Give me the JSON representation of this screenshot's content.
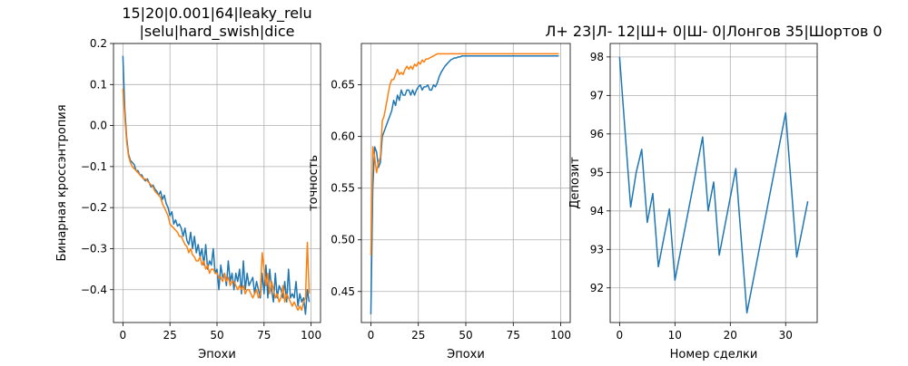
{
  "colors": {
    "series1": "#1f77b4",
    "series2": "#ff7f0e",
    "grid": "#b0b0b0"
  },
  "chart_data": [
    {
      "type": "line",
      "title_lines": [
        "15|20|0.001|64|leaky_relu",
        "|selu|hard_swish|dice"
      ],
      "xlabel": "Эпохи",
      "ylabel": "Бинарная кроссэнтропия",
      "xlim": [
        -5,
        105
      ],
      "ylim": [
        -0.48,
        0.2
      ],
      "xticks": [
        0,
        25,
        50,
        75,
        100
      ],
      "yticks": [
        -0.4,
        -0.3,
        -0.2,
        -0.1,
        0.0,
        0.1,
        0.2
      ],
      "xtick_labels": [
        "0",
        "25",
        "50",
        "75",
        "100"
      ],
      "ytick_labels": [
        "−0.4",
        "−0.3",
        "−0.2",
        "−0.1",
        "0.0",
        "0.1",
        "0.2"
      ],
      "grid": true,
      "series": [
        {
          "name": "series-1",
          "color": "#1f77b4",
          "x": [
            0,
            1,
            2,
            3,
            4,
            5,
            6,
            7,
            8,
            9,
            10,
            11,
            12,
            13,
            14,
            15,
            16,
            17,
            18,
            19,
            20,
            21,
            22,
            23,
            24,
            25,
            26,
            27,
            28,
            29,
            30,
            31,
            32,
            33,
            34,
            35,
            36,
            37,
            38,
            39,
            40,
            41,
            42,
            43,
            44,
            45,
            46,
            47,
            48,
            49,
            50,
            51,
            52,
            53,
            54,
            55,
            56,
            57,
            58,
            59,
            60,
            61,
            62,
            63,
            64,
            65,
            66,
            67,
            68,
            69,
            70,
            71,
            72,
            73,
            74,
            75,
            76,
            77,
            78,
            79,
            80,
            81,
            82,
            83,
            84,
            85,
            86,
            87,
            88,
            89,
            90,
            91,
            92,
            93,
            94,
            95,
            96,
            97,
            98,
            99
          ],
          "values": [
            0.17,
            0.04,
            -0.03,
            -0.07,
            -0.085,
            -0.09,
            -0.095,
            -0.11,
            -0.11,
            -0.12,
            -0.12,
            -0.13,
            -0.135,
            -0.13,
            -0.14,
            -0.15,
            -0.145,
            -0.155,
            -0.16,
            -0.17,
            -0.16,
            -0.18,
            -0.17,
            -0.19,
            -0.2,
            -0.22,
            -0.21,
            -0.24,
            -0.23,
            -0.245,
            -0.24,
            -0.25,
            -0.27,
            -0.25,
            -0.28,
            -0.29,
            -0.26,
            -0.3,
            -0.27,
            -0.31,
            -0.29,
            -0.32,
            -0.3,
            -0.34,
            -0.29,
            -0.35,
            -0.33,
            -0.34,
            -0.3,
            -0.36,
            -0.35,
            -0.4,
            -0.34,
            -0.37,
            -0.36,
            -0.39,
            -0.33,
            -0.38,
            -0.36,
            -0.4,
            -0.36,
            -0.38,
            -0.35,
            -0.41,
            -0.33,
            -0.4,
            -0.36,
            -0.39,
            -0.38,
            -0.37,
            -0.41,
            -0.38,
            -0.4,
            -0.42,
            -0.36,
            -0.41,
            -0.34,
            -0.42,
            -0.35,
            -0.4,
            -0.43,
            -0.36,
            -0.42,
            -0.39,
            -0.4,
            -0.42,
            -0.38,
            -0.43,
            -0.35,
            -0.42,
            -0.41,
            -0.42,
            -0.38,
            -0.44,
            -0.41,
            -0.43,
            -0.42,
            -0.46,
            -0.4,
            -0.43
          ]
        },
        {
          "name": "series-2",
          "color": "#ff7f0e",
          "x": [
            0,
            1,
            2,
            3,
            4,
            5,
            6,
            7,
            8,
            9,
            10,
            11,
            12,
            13,
            14,
            15,
            16,
            17,
            18,
            19,
            20,
            21,
            22,
            23,
            24,
            25,
            26,
            27,
            28,
            29,
            30,
            31,
            32,
            33,
            34,
            35,
            36,
            37,
            38,
            39,
            40,
            41,
            42,
            43,
            44,
            45,
            46,
            47,
            48,
            49,
            50,
            51,
            52,
            53,
            54,
            55,
            56,
            57,
            58,
            59,
            60,
            61,
            62,
            63,
            64,
            65,
            66,
            67,
            68,
            69,
            70,
            71,
            72,
            73,
            74,
            75,
            76,
            77,
            78,
            79,
            80,
            81,
            82,
            83,
            84,
            85,
            86,
            87,
            88,
            89,
            90,
            91,
            92,
            93,
            94,
            95,
            96,
            97,
            98,
            99
          ],
          "values": [
            0.09,
            0.02,
            -0.04,
            -0.075,
            -0.09,
            -0.1,
            -0.105,
            -0.11,
            -0.115,
            -0.12,
            -0.125,
            -0.13,
            -0.13,
            -0.135,
            -0.14,
            -0.145,
            -0.15,
            -0.16,
            -0.165,
            -0.17,
            -0.175,
            -0.19,
            -0.2,
            -0.21,
            -0.22,
            -0.24,
            -0.245,
            -0.25,
            -0.255,
            -0.26,
            -0.27,
            -0.27,
            -0.28,
            -0.29,
            -0.295,
            -0.31,
            -0.3,
            -0.315,
            -0.32,
            -0.33,
            -0.33,
            -0.32,
            -0.34,
            -0.33,
            -0.35,
            -0.34,
            -0.36,
            -0.35,
            -0.35,
            -0.36,
            -0.36,
            -0.37,
            -0.37,
            -0.38,
            -0.36,
            -0.38,
            -0.37,
            -0.39,
            -0.38,
            -0.38,
            -0.39,
            -0.4,
            -0.39,
            -0.4,
            -0.39,
            -0.41,
            -0.4,
            -0.4,
            -0.41,
            -0.42,
            -0.41,
            -0.4,
            -0.42,
            -0.41,
            -0.31,
            -0.35,
            -0.39,
            -0.36,
            -0.41,
            -0.38,
            -0.4,
            -0.42,
            -0.41,
            -0.43,
            -0.42,
            -0.39,
            -0.43,
            -0.41,
            -0.42,
            -0.43,
            -0.44,
            -0.43,
            -0.44,
            -0.45,
            -0.44,
            -0.45,
            -0.43,
            -0.42,
            -0.285,
            -0.41
          ]
        }
      ]
    },
    {
      "type": "line",
      "title_lines": [],
      "xlabel": "Эпохи",
      "ylabel": "точность",
      "xlim": [
        -5,
        105
      ],
      "ylim": [
        0.42,
        0.69
      ],
      "xticks": [
        0,
        25,
        50,
        75,
        100
      ],
      "yticks": [
        0.45,
        0.5,
        0.55,
        0.6,
        0.65
      ],
      "xtick_labels": [
        "0",
        "25",
        "50",
        "75",
        "100"
      ],
      "ytick_labels": [
        "0.45",
        "0.50",
        "0.55",
        "0.60",
        "0.65"
      ],
      "grid": true,
      "series": [
        {
          "name": "series-1",
          "color": "#1f77b4",
          "x": [
            0,
            1,
            2,
            3,
            4,
            5,
            6,
            7,
            8,
            9,
            10,
            11,
            12,
            13,
            14,
            15,
            16,
            17,
            18,
            19,
            20,
            21,
            22,
            23,
            24,
            25,
            26,
            27,
            28,
            29,
            30,
            31,
            32,
            33,
            34,
            35,
            36,
            37,
            38,
            39,
            40,
            41,
            42,
            43,
            44,
            45,
            46,
            47,
            48,
            49,
            50,
            51,
            52,
            53,
            54,
            55,
            56,
            57,
            58,
            59,
            60,
            61,
            62,
            63,
            64,
            65,
            66,
            67,
            68,
            69,
            70,
            71,
            72,
            73,
            74,
            75,
            76,
            77,
            78,
            79,
            80,
            81,
            82,
            83,
            84,
            85,
            86,
            87,
            88,
            89,
            90,
            91,
            92,
            93,
            94,
            95,
            96,
            97,
            98,
            99
          ],
          "values": [
            0.428,
            0.55,
            0.59,
            0.585,
            0.57,
            0.575,
            0.6,
            0.605,
            0.61,
            0.615,
            0.62,
            0.625,
            0.635,
            0.63,
            0.64,
            0.635,
            0.645,
            0.64,
            0.64,
            0.645,
            0.645,
            0.64,
            0.645,
            0.64,
            0.645,
            0.648,
            0.65,
            0.645,
            0.648,
            0.648,
            0.65,
            0.645,
            0.645,
            0.65,
            0.648,
            0.652,
            0.658,
            0.662,
            0.665,
            0.668,
            0.67,
            0.672,
            0.674,
            0.675,
            0.676,
            0.676,
            0.677,
            0.677,
            0.678,
            0.678,
            0.678,
            0.678,
            0.678,
            0.678,
            0.678,
            0.678,
            0.678,
            0.678,
            0.678,
            0.678,
            0.678,
            0.678,
            0.678,
            0.678,
            0.678,
            0.678,
            0.678,
            0.678,
            0.678,
            0.678,
            0.678,
            0.678,
            0.678,
            0.678,
            0.678,
            0.678,
            0.678,
            0.678,
            0.678,
            0.678,
            0.678,
            0.678,
            0.678,
            0.678,
            0.678,
            0.678,
            0.678,
            0.678,
            0.678,
            0.678,
            0.678,
            0.678,
            0.678,
            0.678,
            0.678,
            0.678,
            0.678,
            0.678,
            0.678,
            0.678
          ]
        },
        {
          "name": "series-2",
          "color": "#ff7f0e",
          "x": [
            0,
            1,
            2,
            3,
            4,
            5,
            6,
            7,
            8,
            9,
            10,
            11,
            12,
            13,
            14,
            15,
            16,
            17,
            18,
            19,
            20,
            21,
            22,
            23,
            24,
            25,
            26,
            27,
            28,
            29,
            30,
            31,
            32,
            33,
            34,
            35,
            36,
            37,
            38,
            39,
            40,
            41,
            42,
            43,
            44,
            45,
            46,
            47,
            48,
            49,
            50,
            51,
            52,
            53,
            54,
            55,
            56,
            57,
            58,
            59,
            60,
            61,
            62,
            63,
            64,
            65,
            66,
            67,
            68,
            69,
            70,
            71,
            72,
            73,
            74,
            75,
            76,
            77,
            78,
            79,
            80,
            81,
            82,
            83,
            84,
            85,
            86,
            87,
            88,
            89,
            90,
            91,
            92,
            93,
            94,
            95,
            96,
            97,
            98,
            99
          ],
          "values": [
            0.485,
            0.59,
            0.58,
            0.565,
            0.575,
            0.58,
            0.615,
            0.62,
            0.63,
            0.64,
            0.65,
            0.655,
            0.655,
            0.66,
            0.665,
            0.66,
            0.662,
            0.66,
            0.665,
            0.668,
            0.665,
            0.668,
            0.665,
            0.67,
            0.668,
            0.672,
            0.67,
            0.674,
            0.672,
            0.675,
            0.675,
            0.676,
            0.677,
            0.678,
            0.679,
            0.68,
            0.68,
            0.68,
            0.68,
            0.68,
            0.68,
            0.68,
            0.68,
            0.68,
            0.68,
            0.68,
            0.68,
            0.68,
            0.68,
            0.68,
            0.68,
            0.68,
            0.68,
            0.68,
            0.68,
            0.68,
            0.68,
            0.68,
            0.68,
            0.68,
            0.68,
            0.68,
            0.68,
            0.68,
            0.68,
            0.68,
            0.68,
            0.68,
            0.68,
            0.68,
            0.68,
            0.68,
            0.68,
            0.68,
            0.68,
            0.68,
            0.68,
            0.68,
            0.68,
            0.68,
            0.68,
            0.68,
            0.68,
            0.68,
            0.68,
            0.68,
            0.68,
            0.68,
            0.68,
            0.68,
            0.68,
            0.68,
            0.68,
            0.68,
            0.68,
            0.68,
            0.68,
            0.68,
            0.68,
            0.68
          ]
        }
      ]
    },
    {
      "type": "line",
      "title_lines": [
        "Л+ 23|Л- 12|Ш+ 0|Ш- 0|Лонгов 35|Шортов 0"
      ],
      "xlabel": "Номер сделки",
      "ylabel": "Депозит",
      "xlim": [
        -1.7,
        35.7
      ],
      "ylim": [
        91.1,
        98.35
      ],
      "xticks": [
        0,
        10,
        20,
        30
      ],
      "yticks": [
        92,
        93,
        94,
        95,
        96,
        97,
        98
      ],
      "xtick_labels": [
        "0",
        "10",
        "20",
        "30"
      ],
      "ytick_labels": [
        "92",
        "93",
        "94",
        "95",
        "96",
        "97",
        "98"
      ],
      "grid": true,
      "series": [
        {
          "name": "deposit",
          "color": "#1f77b4",
          "x": [
            0,
            2,
            3,
            4,
            5,
            6,
            7,
            9,
            10,
            15,
            16,
            17,
            18,
            21,
            23,
            30,
            32,
            34
          ],
          "values": [
            98.0,
            94.1,
            95.0,
            95.6,
            93.7,
            94.45,
            92.55,
            94.05,
            92.2,
            95.92,
            94.0,
            94.75,
            92.85,
            95.1,
            91.35,
            96.55,
            92.8,
            94.25
          ]
        }
      ]
    }
  ]
}
